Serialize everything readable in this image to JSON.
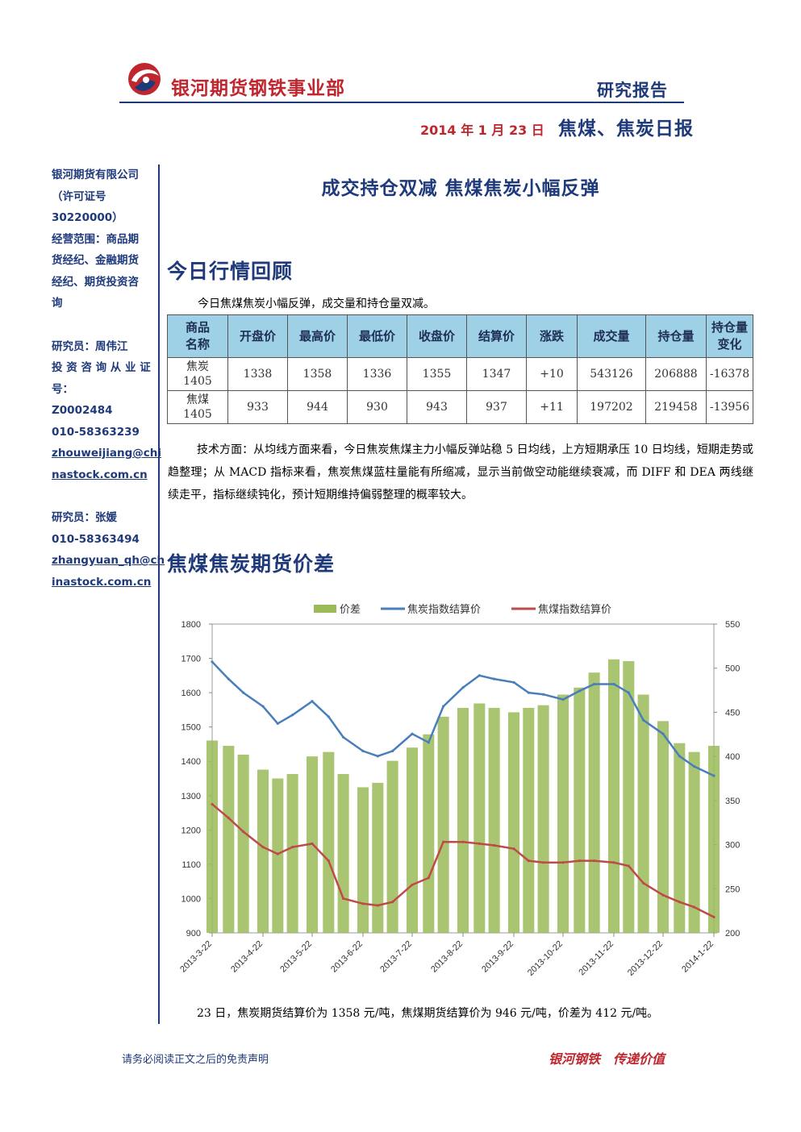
{
  "header": {
    "company": "银河期货钢铁事业部",
    "report_type": "研究报告",
    "date": "2014 年 1 月 23 日",
    "report_name": "焦煤、焦炭日报"
  },
  "sidebar": {
    "company_info": [
      "银河期货有限公司",
      "（许可证号",
      "30220000）",
      "经营范围：商品期",
      "货经纪、金融期货",
      "经纪、期货投资咨",
      "询"
    ],
    "researcher1": [
      "研究员：周伟江",
      "投 资 咨 询 从 业 证",
      "号：",
      "Z0002484",
      "010-58363239"
    ],
    "researcher1_email": [
      "zhouweijiang@chi",
      "nastock.com.cn"
    ],
    "researcher2": [
      "研究员：张媛",
      "010-58363494"
    ],
    "researcher2_email": [
      "zhangyuan_qh@ch",
      "inastock.com.cn"
    ]
  },
  "main_title": "成交持仓双减 焦煤焦炭小幅反弹",
  "section1": {
    "title": "今日行情回顾",
    "intro": "今日焦煤焦炭小幅反弹，成交量和持仓量双减。",
    "table": {
      "headers": [
        "商品\n名称",
        "开盘价",
        "最高价",
        "最低价",
        "收盘价",
        "结算价",
        "涨跌",
        "成交量",
        "持仓量",
        "持仓量\n变化"
      ],
      "rows": [
        [
          "焦炭\n1405",
          "1338",
          "1358",
          "1336",
          "1355",
          "1347",
          "+10",
          "543126",
          "206888",
          "-16378"
        ],
        [
          "焦煤\n1405",
          "933",
          "944",
          "930",
          "943",
          "937",
          "+11",
          "197202",
          "219458",
          "-13956"
        ]
      ]
    },
    "analysis": "技术方面：从均线方面来看，今日焦炭焦煤主力小幅反弹站稳 5 日均线，上方短期承压 10 日均线，短期走势或趋整理；从 MACD 指标来看，焦炭焦煤蓝柱量能有所缩减，显示当前做空动能继续衰减，而 DIFF 和 DEA 两线继续走平，指标继续钝化，预计短期维持偏弱整理的概率较大。"
  },
  "section2": {
    "title": "焦煤焦炭期货价差",
    "summary": "23 日，焦炭期货结算价为 1358 元/吨，焦煤期货结算价为 946 元/吨，价差为 412 元/吨。"
  },
  "footer": {
    "disclaimer": "请务必阅读正文之后的免责声明",
    "slogan": "银河钢铁　传递价值"
  },
  "colors": {
    "navy": "#1f3a7a",
    "red": "#c0262d",
    "bar": "#9bbb59",
    "coke": "#4a7ebb",
    "coal": "#be4b48",
    "table_header": "#9ed0e6"
  },
  "chart_data": {
    "type": "line",
    "legend_position": "top",
    "x_tick_labels": [
      "2013-3-22",
      "2013-4-22",
      "2013-5-22",
      "2013-6-22",
      "2013-7-22",
      "2013-8-22",
      "2013-9-22",
      "2013-10-22",
      "2013-11-22",
      "2013-12-22",
      "2014-1-22"
    ],
    "left_axis": {
      "ylim": [
        900,
        1800
      ],
      "ticks": [
        900,
        1000,
        1100,
        1200,
        1300,
        1400,
        1500,
        1600,
        1700,
        1800
      ]
    },
    "right_axis": {
      "ylim": [
        200,
        550
      ],
      "ticks": [
        200,
        250,
        300,
        350,
        400,
        450,
        500,
        550
      ]
    },
    "x": [
      "2013-03-22",
      "2013-04-01",
      "2013-04-10",
      "2013-04-22",
      "2013-05-01",
      "2013-05-10",
      "2013-05-22",
      "2013-06-01",
      "2013-06-10",
      "2013-06-22",
      "2013-07-01",
      "2013-07-10",
      "2013-07-22",
      "2013-08-01",
      "2013-08-10",
      "2013-08-22",
      "2013-09-01",
      "2013-09-10",
      "2013-09-22",
      "2013-10-01",
      "2013-10-10",
      "2013-10-22",
      "2013-11-01",
      "2013-11-10",
      "2013-11-22",
      "2013-12-01",
      "2013-12-10",
      "2013-12-22",
      "2014-01-01",
      "2014-01-10",
      "2014-01-22"
    ],
    "series": [
      {
        "name": "价差",
        "axis": "right",
        "kind": "bar",
        "values": [
          418,
          412,
          402,
          385,
          375,
          380,
          400,
          405,
          380,
          365,
          370,
          395,
          410,
          425,
          445,
          455,
          460,
          455,
          450,
          455,
          458,
          470,
          478,
          495,
          510,
          508,
          470,
          440,
          415,
          405,
          412
        ]
      },
      {
        "name": "焦炭指数结算价",
        "axis": "left",
        "kind": "line",
        "values": [
          1690,
          1640,
          1600,
          1560,
          1510,
          1535,
          1575,
          1530,
          1470,
          1430,
          1415,
          1430,
          1480,
          1455,
          1560,
          1615,
          1650,
          1640,
          1630,
          1600,
          1595,
          1580,
          1605,
          1625,
          1625,
          1600,
          1520,
          1480,
          1415,
          1385,
          1358
        ]
      },
      {
        "name": "焦煤指数结算价",
        "axis": "left",
        "kind": "line",
        "values": [
          1275,
          1235,
          1195,
          1150,
          1130,
          1150,
          1160,
          1110,
          1000,
          985,
          980,
          990,
          1040,
          1060,
          1165,
          1165,
          1160,
          1155,
          1145,
          1110,
          1105,
          1105,
          1110,
          1110,
          1105,
          1095,
          1045,
          1010,
          990,
          975,
          946
        ]
      }
    ]
  }
}
